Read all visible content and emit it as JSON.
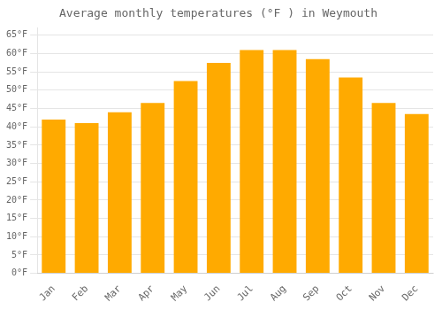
{
  "chart_data": {
    "type": "bar",
    "title": "Average monthly temperatures (°F ) in Weymouth",
    "categories": [
      "Jan",
      "Feb",
      "Mar",
      "Apr",
      "May",
      "Jun",
      "Jul",
      "Aug",
      "Sep",
      "Oct",
      "Nov",
      "Dec"
    ],
    "values": [
      42,
      41,
      44,
      46.5,
      52.5,
      57.5,
      61,
      61,
      58.5,
      53.5,
      46.5,
      43.5
    ],
    "color": "#FFAA00",
    "ylim": [
      0,
      67
    ],
    "yticks": [
      {
        "value": 0,
        "label": "0°F"
      },
      {
        "value": 5,
        "label": "5°F"
      },
      {
        "value": 10,
        "label": "10°F"
      },
      {
        "value": 15,
        "label": "15°F"
      },
      {
        "value": 20,
        "label": "20°F"
      },
      {
        "value": 25,
        "label": "25°F"
      },
      {
        "value": 30,
        "label": "30°F"
      },
      {
        "value": 35,
        "label": "35°F"
      },
      {
        "value": 40,
        "label": "40°F"
      },
      {
        "value": 45,
        "label": "45°F"
      },
      {
        "value": 50,
        "label": "50°F"
      },
      {
        "value": 55,
        "label": "55°F"
      },
      {
        "value": 60,
        "label": "60°F"
      },
      {
        "value": 65,
        "label": "65°F"
      }
    ],
    "grid": true
  }
}
